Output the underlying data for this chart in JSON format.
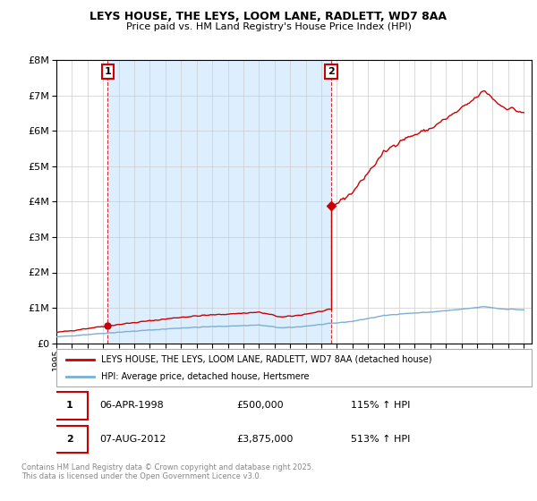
{
  "title": "LEYS HOUSE, THE LEYS, LOOM LANE, RADLETT, WD7 8AA",
  "subtitle": "Price paid vs. HM Land Registry's House Price Index (HPI)",
  "sale1_date": "06-APR-1998",
  "sale1_price": 500000,
  "sale1_hpi_pct": 115,
  "sale1_year": 1998,
  "sale1_month": 4,
  "sale2_date": "07-AUG-2012",
  "sale2_price": 3875000,
  "sale2_hpi_pct": 513,
  "sale2_year": 2012,
  "sale2_month": 8,
  "legend_line1": "LEYS HOUSE, THE LEYS, LOOM LANE, RADLETT, WD7 8AA (detached house)",
  "legend_line2": "HPI: Average price, detached house, Hertsmere",
  "footnote": "Contains HM Land Registry data © Crown copyright and database right 2025.\nThis data is licensed under the Open Government Licence v3.0.",
  "house_color": "#cc0000",
  "hpi_color": "#7bafd4",
  "shade_color": "#ddeeff",
  "annotation_edgecolor": "#cc0000",
  "ylim_max": 8000000,
  "xlim_min": 1995,
  "xlim_max": 2025.5
}
